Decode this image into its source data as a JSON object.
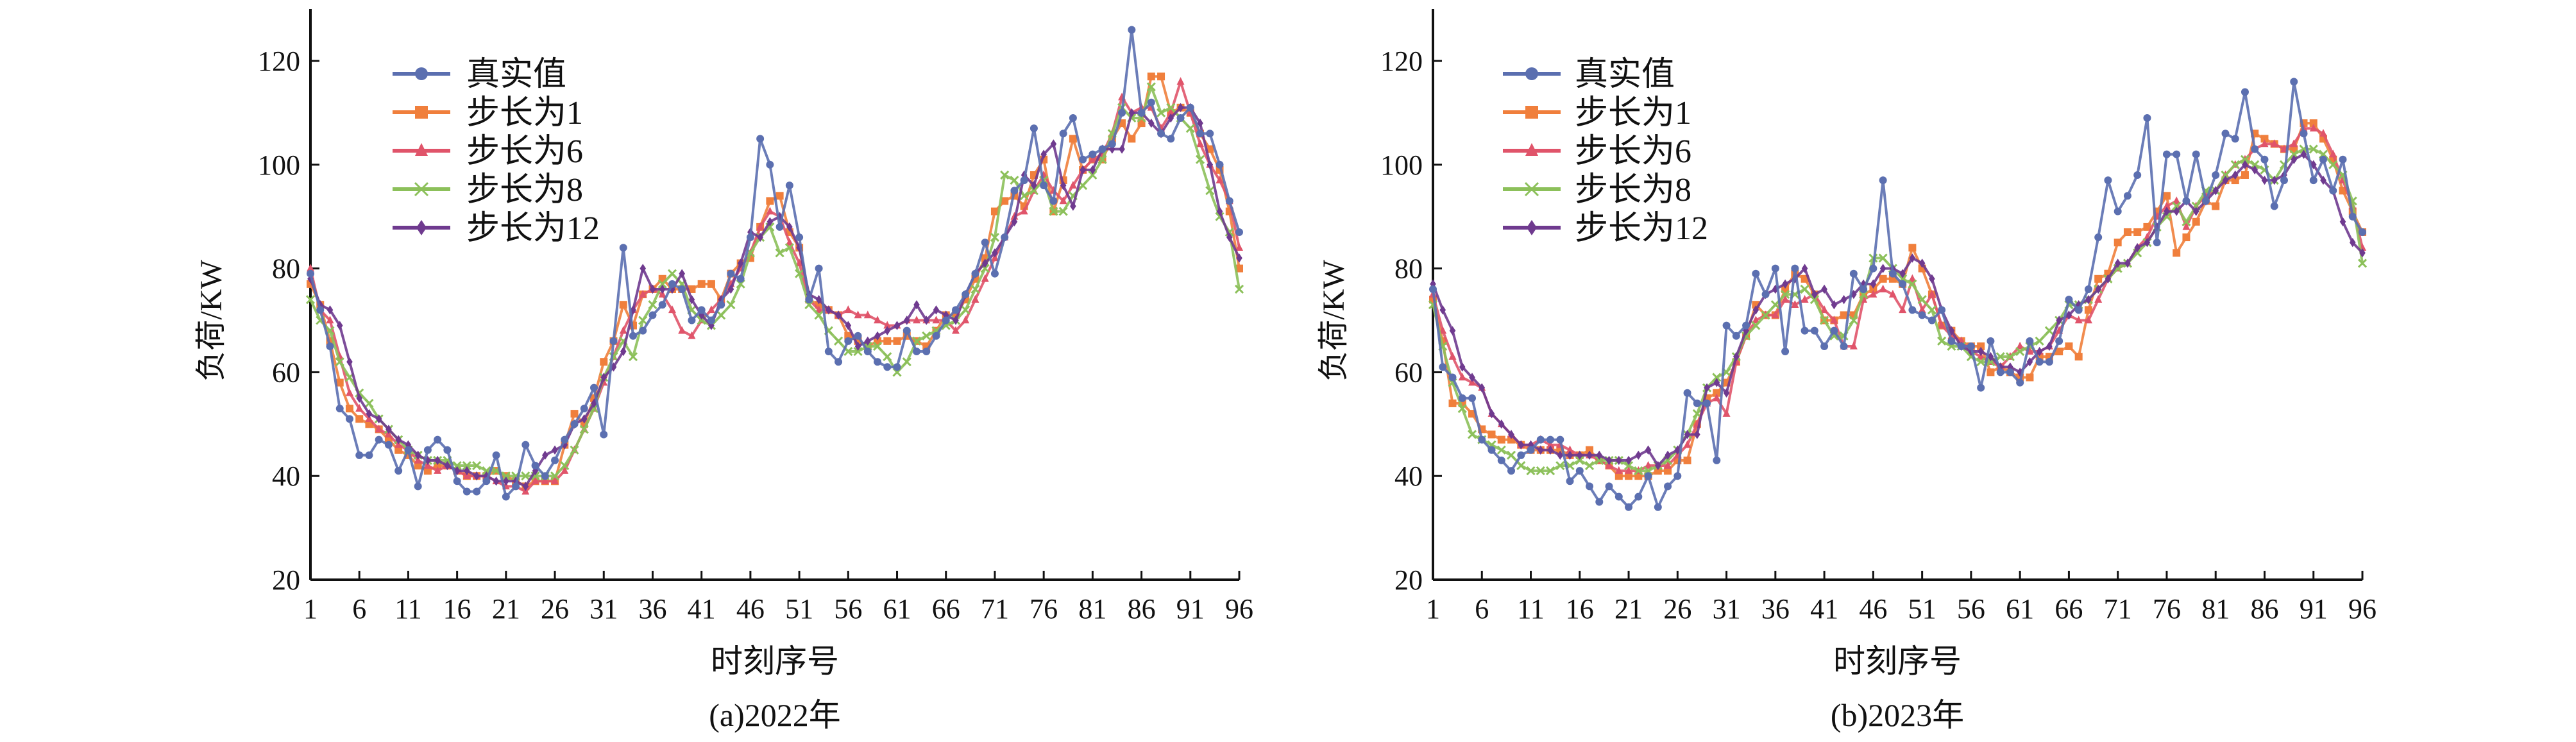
{
  "colors": {
    "true": "#5b6fb0",
    "step1": "#f07f3c",
    "step6": "#e0546a",
    "step8": "#8cc05a",
    "step12": "#6f3a8f"
  },
  "chart_data": [
    {
      "type": "line",
      "caption": "(a)2022年",
      "xlabel": "时刻序号",
      "ylabel": "负荷/KW",
      "ylim": [
        20,
        130
      ],
      "yticks": [
        20,
        40,
        60,
        80,
        100,
        120
      ],
      "xticks": [
        1,
        6,
        11,
        16,
        21,
        26,
        31,
        36,
        41,
        46,
        51,
        56,
        61,
        66,
        71,
        76,
        81,
        86,
        91,
        96
      ],
      "legend_position": "top-left",
      "series": [
        {
          "name": "真实值",
          "key": "true",
          "marker": "circle",
          "values": [
            79,
            72,
            65,
            53,
            51,
            44,
            44,
            47,
            46,
            41,
            45,
            38,
            45,
            47,
            45,
            39,
            37,
            37,
            39,
            44,
            36,
            38,
            46,
            42,
            40,
            43,
            47,
            50,
            53,
            57,
            48,
            66,
            84,
            67,
            68,
            71,
            73,
            77,
            76,
            70,
            72,
            70,
            73,
            79,
            78,
            86,
            105,
            100,
            88,
            96,
            86,
            74,
            80,
            64,
            62,
            66,
            67,
            64,
            62,
            61,
            61,
            68,
            64,
            64,
            67,
            70,
            72,
            75,
            79,
            85,
            79,
            86,
            95,
            97,
            107,
            96,
            93,
            106,
            109,
            101,
            102,
            103,
            104,
            110,
            126,
            110,
            112,
            106,
            105,
            109,
            111,
            106,
            106,
            100,
            93,
            87
          ]
        },
        {
          "name": "步长为1",
          "key": "step1",
          "marker": "square",
          "values": [
            77,
            73,
            66,
            58,
            53,
            51,
            50,
            49,
            47,
            45,
            44,
            42,
            41,
            42,
            42,
            41,
            40,
            40,
            40,
            41,
            40,
            39,
            38,
            39,
            39,
            39,
            46,
            52,
            50,
            55,
            62,
            66,
            73,
            69,
            75,
            76,
            78,
            76,
            76,
            76,
            77,
            77,
            74,
            79,
            81,
            82,
            88,
            93,
            94,
            87,
            84,
            74,
            73,
            72,
            71,
            67,
            66,
            65,
            66,
            66,
            66,
            67,
            66,
            65,
            68,
            71,
            71,
            74,
            78,
            82,
            91,
            93,
            94,
            92,
            98,
            101,
            91,
            97,
            105,
            99,
            101,
            101,
            105,
            108,
            105,
            108,
            117,
            117,
            110,
            111,
            110,
            106,
            103,
            99,
            91,
            80
          ]
        },
        {
          "name": "步长为6",
          "key": "step6",
          "marker": "triangle",
          "values": [
            80,
            72,
            70,
            63,
            56,
            53,
            51,
            49,
            48,
            46,
            45,
            43,
            42,
            41,
            42,
            41,
            40,
            40,
            40,
            39,
            38,
            38,
            37,
            39,
            39,
            39,
            41,
            45,
            49,
            53,
            58,
            63,
            68,
            72,
            75,
            76,
            75,
            72,
            68,
            67,
            70,
            72,
            74,
            77,
            80,
            83,
            88,
            91,
            90,
            85,
            81,
            74,
            72,
            72,
            71,
            72,
            71,
            71,
            70,
            69,
            69,
            70,
            70,
            70,
            70,
            70,
            68,
            70,
            74,
            78,
            82,
            86,
            90,
            91,
            95,
            98,
            95,
            93,
            96,
            99,
            101,
            102,
            106,
            113,
            110,
            111,
            111,
            107,
            110,
            116,
            110,
            104,
            100,
            97,
            93,
            84
          ]
        },
        {
          "name": "步长为8",
          "key": "step8",
          "marker": "x",
          "values": [
            74,
            70,
            68,
            62,
            59,
            56,
            54,
            51,
            49,
            47,
            45,
            44,
            43,
            43,
            43,
            42,
            42,
            42,
            41,
            41,
            40,
            40,
            40,
            40,
            40,
            40,
            42,
            45,
            49,
            53,
            59,
            63,
            66,
            63,
            70,
            73,
            77,
            79,
            77,
            72,
            70,
            69,
            71,
            73,
            77,
            83,
            86,
            88,
            83,
            84,
            79,
            73,
            71,
            68,
            66,
            64,
            64,
            65,
            65,
            63,
            60,
            62,
            66,
            67,
            68,
            69,
            70,
            72,
            76,
            80,
            86,
            98,
            97,
            94,
            95,
            97,
            91,
            91,
            94,
            96,
            98,
            101,
            106,
            111,
            109,
            109,
            115,
            110,
            111,
            109,
            107,
            101,
            95,
            90,
            87,
            76
          ]
        },
        {
          "name": "步长为12",
          "key": "step12",
          "marker": "diamond",
          "values": [
            78,
            73,
            72,
            69,
            62,
            55,
            52,
            51,
            49,
            47,
            46,
            44,
            43,
            43,
            42,
            41,
            41,
            40,
            40,
            39,
            39,
            39,
            38,
            41,
            44,
            45,
            46,
            50,
            51,
            54,
            59,
            61,
            64,
            72,
            80,
            76,
            76,
            76,
            79,
            74,
            71,
            69,
            74,
            76,
            81,
            87,
            86,
            89,
            90,
            88,
            84,
            75,
            74,
            72,
            71,
            69,
            65,
            66,
            67,
            68,
            69,
            70,
            73,
            70,
            72,
            71,
            70,
            75,
            79,
            81,
            83,
            86,
            89,
            98,
            96,
            102,
            104,
            96,
            92,
            99,
            99,
            103,
            103,
            103,
            110,
            110,
            108,
            106,
            109,
            111,
            111,
            108,
            100,
            91,
            86,
            82
          ]
        }
      ]
    },
    {
      "type": "line",
      "caption": "(b)2023年",
      "xlabel": "时刻序号",
      "ylabel": "负荷/KW",
      "ylim": [
        20,
        130
      ],
      "yticks": [
        20,
        40,
        60,
        80,
        100,
        120
      ],
      "xticks": [
        1,
        6,
        11,
        16,
        21,
        26,
        31,
        36,
        41,
        46,
        51,
        56,
        61,
        66,
        71,
        76,
        81,
        86,
        91,
        96
      ],
      "legend_position": "top-left",
      "series": [
        {
          "name": "真实值",
          "key": "true",
          "marker": "circle",
          "values": [
            76,
            61,
            59,
            55,
            55,
            47,
            45,
            43,
            41,
            44,
            45,
            47,
            47,
            47,
            39,
            41,
            38,
            35,
            38,
            36,
            34,
            36,
            40,
            34,
            38,
            40,
            56,
            54,
            54,
            43,
            69,
            67,
            69,
            79,
            75,
            80,
            64,
            80,
            68,
            68,
            65,
            68,
            65,
            79,
            76,
            80,
            97,
            79,
            77,
            72,
            71,
            70,
            72,
            66,
            65,
            65,
            57,
            66,
            60,
            60,
            58,
            66,
            62,
            62,
            66,
            74,
            72,
            76,
            86,
            97,
            91,
            94,
            98,
            109,
            85,
            102,
            102,
            93,
            102,
            93,
            98,
            106,
            105,
            114,
            103,
            101,
            92,
            97,
            116,
            106,
            97,
            101,
            95,
            101,
            90,
            87
          ]
        },
        {
          "name": "步长为1",
          "key": "step1",
          "marker": "square",
          "values": [
            74,
            66,
            54,
            54,
            52,
            49,
            48,
            47,
            47,
            46,
            45,
            45,
            45,
            45,
            44,
            44,
            45,
            43,
            42,
            40,
            40,
            40,
            40,
            41,
            41,
            43,
            43,
            50,
            55,
            56,
            58,
            62,
            67,
            73,
            71,
            71,
            76,
            79,
            78,
            75,
            70,
            70,
            71,
            71,
            75,
            76,
            78,
            78,
            77,
            84,
            80,
            75,
            69,
            68,
            66,
            65,
            65,
            60,
            61,
            60,
            59,
            59,
            63,
            63,
            64,
            65,
            63,
            72,
            78,
            79,
            85,
            87,
            87,
            88,
            91,
            94,
            83,
            86,
            89,
            93,
            92,
            97,
            97,
            98,
            106,
            105,
            104,
            103,
            103,
            108,
            108,
            105,
            101,
            95,
            91,
            87
          ]
        },
        {
          "name": "步长为6",
          "key": "step6",
          "marker": "triangle",
          "values": [
            75,
            68,
            63,
            59,
            58,
            57,
            52,
            50,
            48,
            46,
            46,
            47,
            46,
            46,
            45,
            44,
            44,
            43,
            42,
            41,
            41,
            41,
            42,
            42,
            42,
            44,
            46,
            50,
            54,
            55,
            52,
            62,
            67,
            70,
            71,
            71,
            74,
            73,
            74,
            75,
            72,
            70,
            65,
            65,
            74,
            75,
            76,
            75,
            72,
            78,
            72,
            75,
            69,
            67,
            66,
            64,
            63,
            62,
            61,
            63,
            65,
            64,
            64,
            65,
            68,
            71,
            70,
            70,
            74,
            78,
            80,
            81,
            84,
            86,
            90,
            92,
            93,
            88,
            92,
            94,
            95,
            98,
            100,
            101,
            103,
            104,
            104,
            103,
            104,
            107,
            107,
            106,
            102,
            97,
            92,
            84
          ]
        },
        {
          "name": "步长为8",
          "key": "step8",
          "marker": "x",
          "values": [
            73,
            65,
            58,
            53,
            48,
            47,
            46,
            45,
            44,
            42,
            41,
            41,
            41,
            42,
            42,
            43,
            42,
            43,
            43,
            43,
            42,
            41,
            41,
            42,
            43,
            45,
            48,
            52,
            57,
            59,
            60,
            63,
            67,
            69,
            71,
            73,
            75,
            75,
            76,
            74,
            70,
            67,
            67,
            70,
            75,
            82,
            82,
            80,
            78,
            77,
            74,
            72,
            66,
            65,
            65,
            63,
            62,
            62,
            63,
            63,
            64,
            65,
            66,
            68,
            70,
            73,
            73,
            74,
            76,
            78,
            80,
            81,
            83,
            85,
            88,
            90,
            92,
            89,
            92,
            95,
            95,
            98,
            100,
            101,
            100,
            99,
            97,
            100,
            102,
            103,
            103,
            102,
            100,
            98,
            93,
            81
          ]
        },
        {
          "name": "步长为12",
          "key": "step12",
          "marker": "diamond",
          "values": [
            77,
            72,
            68,
            61,
            59,
            57,
            52,
            50,
            48,
            46,
            46,
            45,
            45,
            44,
            44,
            44,
            44,
            44,
            43,
            43,
            43,
            44,
            45,
            42,
            44,
            45,
            48,
            48,
            57,
            58,
            56,
            63,
            68,
            72,
            75,
            76,
            77,
            78,
            80,
            75,
            76,
            73,
            74,
            75,
            77,
            77,
            80,
            80,
            79,
            82,
            81,
            78,
            72,
            68,
            65,
            64,
            64,
            63,
            61,
            61,
            60,
            62,
            64,
            65,
            70,
            71,
            73,
            74,
            76,
            78,
            81,
            81,
            84,
            85,
            88,
            91,
            91,
            93,
            91,
            93,
            95,
            97,
            98,
            100,
            99,
            97,
            97,
            98,
            101,
            102,
            100,
            97,
            95,
            89,
            85,
            83
          ]
        }
      ]
    }
  ]
}
